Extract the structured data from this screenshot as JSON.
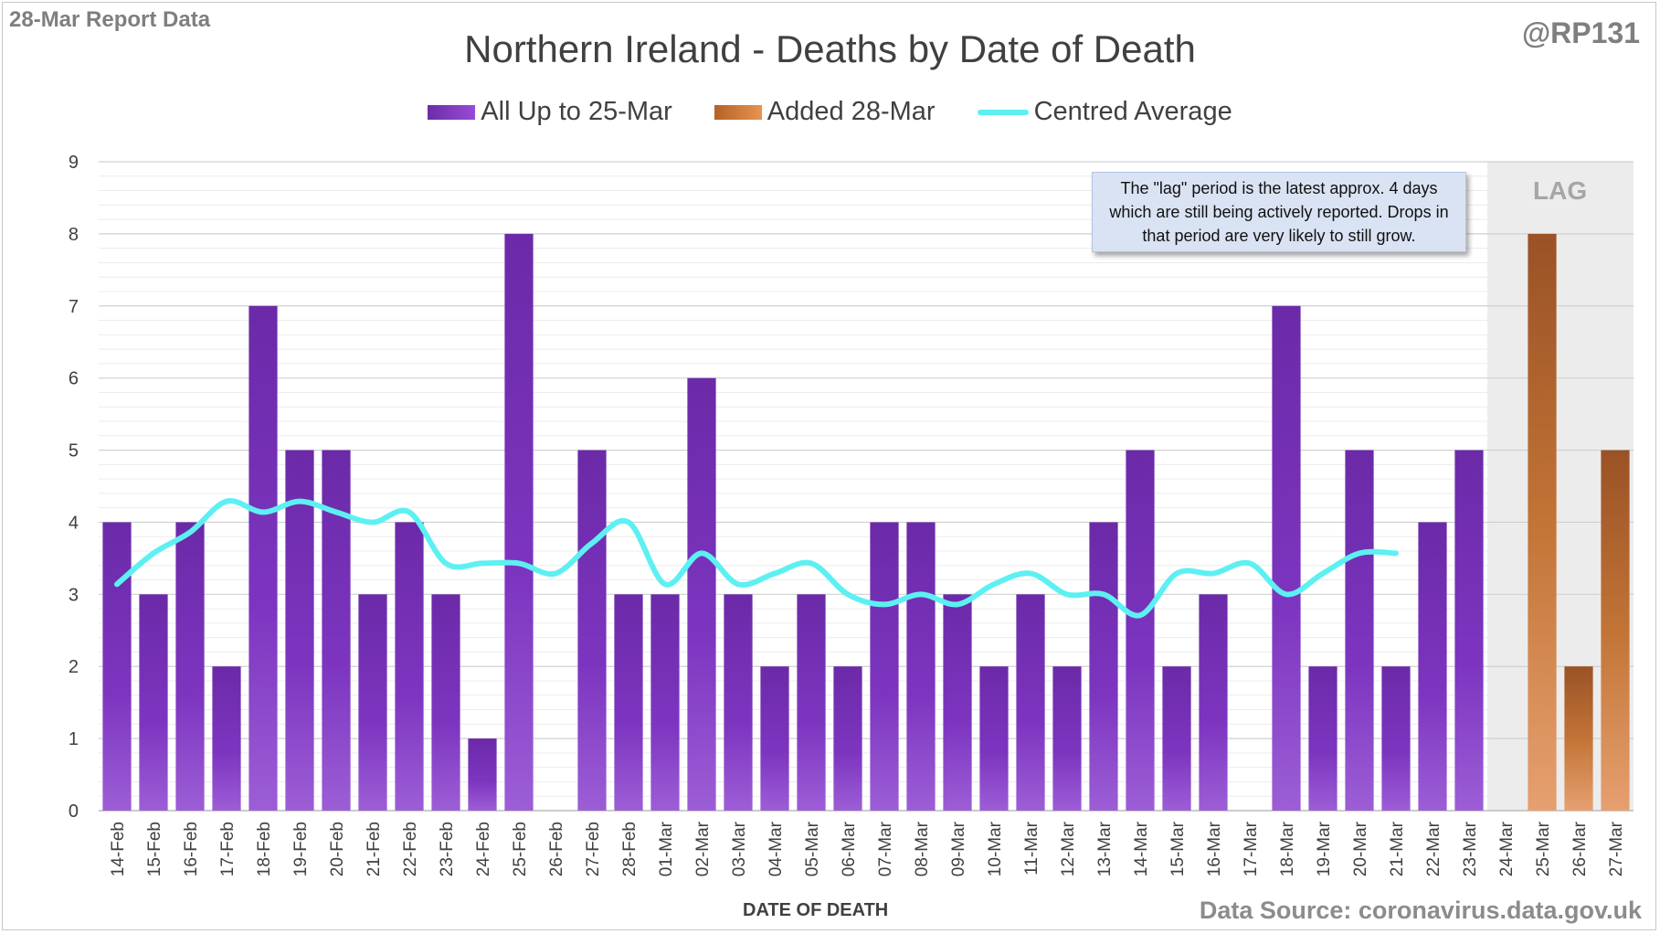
{
  "header": {
    "report_label": "28-Mar Report Data",
    "handle": "@RP131",
    "source": "Data Source: coronavirus.data.gov.uk",
    "note": "The \"lag\" period is the latest approx. 4 days which are still being actively reported. Drops in that period are very likely to still grow.",
    "lag_label": "LAG"
  },
  "chart_data": {
    "type": "bar",
    "title": "Northern Ireland - Deaths by Date of Death",
    "xlabel": "DATE OF DEATH",
    "ylabel": "",
    "ylim": [
      0,
      9
    ],
    "yticks": [
      0,
      1,
      2,
      3,
      4,
      5,
      6,
      7,
      8,
      9
    ],
    "grid": true,
    "legend_position": "top",
    "categories": [
      "14-Feb",
      "15-Feb",
      "16-Feb",
      "17-Feb",
      "18-Feb",
      "19-Feb",
      "20-Feb",
      "21-Feb",
      "22-Feb",
      "23-Feb",
      "24-Feb",
      "25-Feb",
      "26-Feb",
      "27-Feb",
      "28-Feb",
      "01-Mar",
      "02-Mar",
      "03-Mar",
      "04-Mar",
      "05-Mar",
      "06-Mar",
      "07-Mar",
      "08-Mar",
      "09-Mar",
      "10-Mar",
      "11-Mar",
      "12-Mar",
      "13-Mar",
      "14-Mar",
      "15-Mar",
      "16-Mar",
      "17-Mar",
      "18-Mar",
      "19-Mar",
      "20-Mar",
      "21-Mar",
      "22-Mar",
      "23-Mar",
      "24-Mar",
      "25-Mar",
      "26-Mar",
      "27-Mar"
    ],
    "lag_categories": [
      "24-Mar",
      "25-Mar",
      "26-Mar",
      "27-Mar"
    ],
    "series": [
      {
        "name": "All Up to 25-Mar",
        "kind": "bar",
        "color": "#7a36b8",
        "values": [
          4,
          3,
          4,
          2,
          7,
          5,
          5,
          3,
          4,
          3,
          1,
          8,
          0,
          5,
          3,
          3,
          6,
          3,
          2,
          3,
          2,
          4,
          4,
          3,
          2,
          3,
          2,
          4,
          5,
          2,
          3,
          0,
          7,
          2,
          5,
          2,
          4,
          5,
          0,
          0,
          0,
          0
        ]
      },
      {
        "name": "Added 28-Mar",
        "kind": "bar",
        "color": "#c97538",
        "values": [
          0,
          0,
          0,
          0,
          0,
          0,
          0,
          0,
          0,
          0,
          0,
          0,
          0,
          0,
          0,
          0,
          0,
          0,
          0,
          0,
          0,
          0,
          0,
          0,
          0,
          0,
          0,
          0,
          0,
          0,
          0,
          0,
          0,
          0,
          0,
          0,
          0,
          0,
          0,
          8,
          2,
          5
        ]
      },
      {
        "name": "Centred Average",
        "kind": "line",
        "color": "#5df0f2",
        "values": [
          3.14,
          3.57,
          3.86,
          4.29,
          4.14,
          4.29,
          4.14,
          4.0,
          4.14,
          3.43,
          3.43,
          3.43,
          3.29,
          3.71,
          4.0,
          3.14,
          3.57,
          3.14,
          3.29,
          3.43,
          3.0,
          2.86,
          3.0,
          2.86,
          3.14,
          3.29,
          3.0,
          3.0,
          2.71,
          3.29,
          3.29,
          3.43,
          3.0,
          3.29,
          3.57,
          3.57,
          null,
          null,
          null,
          null,
          null,
          null
        ]
      }
    ]
  }
}
